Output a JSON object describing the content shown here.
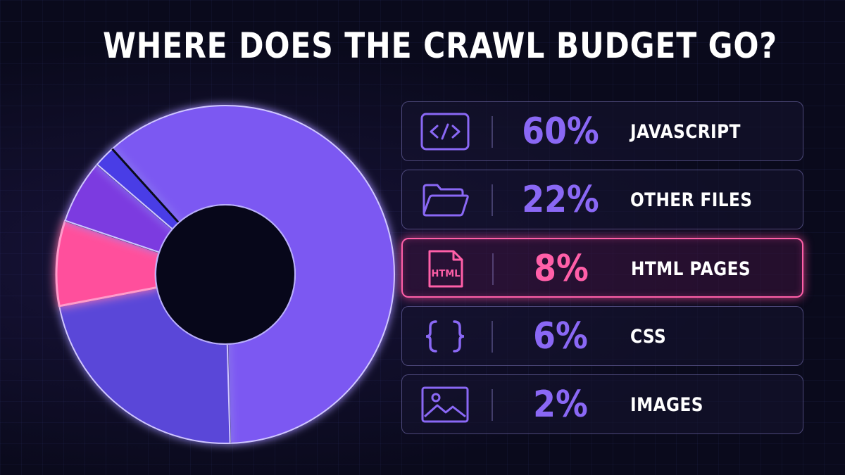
{
  "title": "WHERE DOES THE CRAWL BUDGET GO?",
  "colors": {
    "background": "#0a0a1c",
    "primary_purple": "#7a55f0",
    "highlight_pink": "#ff5fa8",
    "text": "#ffffff"
  },
  "chart_data": {
    "type": "pie",
    "style": "donut",
    "title": "WHERE DOES THE CRAWL BUDGET GO?",
    "categories": [
      "JAVASCRIPT",
      "OTHER FILES",
      "HTML PAGES",
      "CSS",
      "IMAGES"
    ],
    "values": [
      60,
      22,
      8,
      6,
      2
    ],
    "value_labels": [
      "60%",
      "22%",
      "8%",
      "6%",
      "2%"
    ],
    "colors": [
      "#7b58f2",
      "#5a46d8",
      "#ff4f9c",
      "#7c3be0",
      "#4a3ee6"
    ],
    "highlighted": "HTML PAGES",
    "legend_position": "right",
    "slice_order": [
      "JAVASCRIPT",
      "OTHER FILES",
      "HTML PAGES",
      "CSS",
      "IMAGES"
    ]
  },
  "legend": [
    {
      "icon": "code-icon",
      "value": "60%",
      "label": "JAVASCRIPT",
      "highlighted": false
    },
    {
      "icon": "folder-icon",
      "value": "22%",
      "label": "OTHER FILES",
      "highlighted": false
    },
    {
      "icon": "html-file-icon",
      "icon_text": "HTML",
      "value": "8%",
      "label": "HTML PAGES",
      "highlighted": true
    },
    {
      "icon": "curly-braces-icon",
      "value": "6%",
      "label": "CSS",
      "highlighted": false
    },
    {
      "icon": "image-icon",
      "value": "2%",
      "label": "IMAGES",
      "highlighted": false
    }
  ]
}
